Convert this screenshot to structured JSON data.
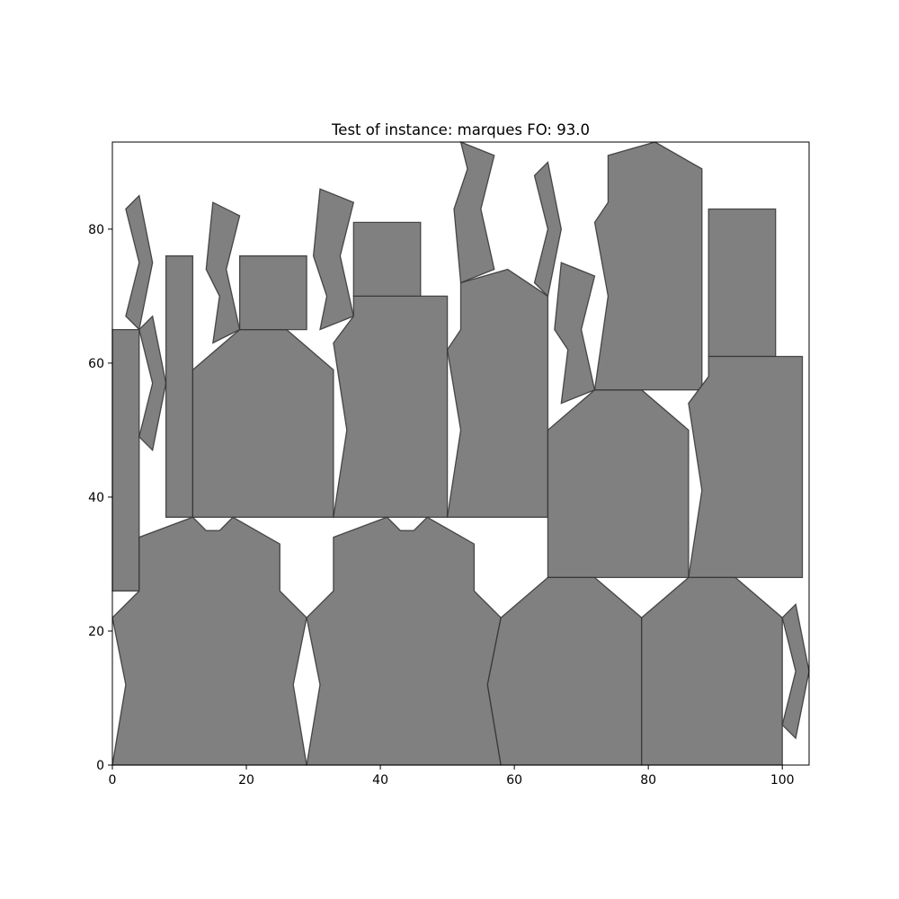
{
  "chart_data": {
    "type": "polygon-packing",
    "title": "Test of instance: marques  FO: 93.0",
    "xlabel": "",
    "ylabel": "",
    "xlim": [
      0,
      104
    ],
    "ylim": [
      0,
      93
    ],
    "xticks": [
      0,
      20,
      40,
      60,
      80,
      100
    ],
    "yticks": [
      0,
      20,
      40,
      60,
      80
    ],
    "grid": false,
    "fill_color": "#808080",
    "edge_color": "#333333",
    "polygons": [
      [
        [
          0,
          26
        ],
        [
          4,
          26
        ],
        [
          4,
          65
        ],
        [
          0,
          65
        ]
      ],
      [
        [
          2,
          83
        ],
        [
          4,
          85
        ],
        [
          6,
          75
        ],
        [
          4,
          65
        ],
        [
          2,
          67
        ],
        [
          4,
          75
        ]
      ],
      [
        [
          4,
          49
        ],
        [
          6,
          47
        ],
        [
          8,
          57
        ],
        [
          6,
          67
        ],
        [
          4,
          65
        ],
        [
          6,
          57
        ]
      ],
      [
        [
          8,
          37
        ],
        [
          12,
          37
        ],
        [
          12,
          76
        ],
        [
          8,
          76
        ]
      ],
      [
        [
          12,
          37
        ],
        [
          33,
          37
        ],
        [
          33,
          59
        ],
        [
          26,
          65
        ],
        [
          19,
          65
        ],
        [
          12,
          59
        ]
      ],
      [
        [
          19,
          65
        ],
        [
          29,
          65
        ],
        [
          29,
          76
        ],
        [
          19,
          76
        ]
      ],
      [
        [
          14,
          74
        ],
        [
          15,
          84
        ],
        [
          19,
          82
        ],
        [
          17,
          74
        ],
        [
          19,
          65
        ],
        [
          15,
          63
        ],
        [
          16,
          70
        ]
      ],
      [
        [
          30,
          76
        ],
        [
          31,
          86
        ],
        [
          36,
          84
        ],
        [
          34,
          76
        ],
        [
          36,
          67
        ],
        [
          31,
          65
        ],
        [
          32,
          70
        ]
      ],
      [
        [
          33,
          37
        ],
        [
          50,
          37
        ],
        [
          50,
          70
        ],
        [
          36,
          70
        ],
        [
          36,
          67
        ],
        [
          33,
          63
        ],
        [
          35,
          50
        ]
      ],
      [
        [
          36,
          70
        ],
        [
          46,
          70
        ],
        [
          46,
          81
        ],
        [
          36,
          81
        ]
      ],
      [
        [
          50,
          37
        ],
        [
          65,
          37
        ],
        [
          65,
          70
        ],
        [
          59,
          74
        ],
        [
          52,
          72
        ],
        [
          52,
          65
        ],
        [
          50,
          62
        ],
        [
          52,
          50
        ]
      ],
      [
        [
          51,
          83
        ],
        [
          53,
          89
        ],
        [
          52,
          93
        ],
        [
          57,
          91
        ],
        [
          55,
          83
        ],
        [
          57,
          74
        ],
        [
          52,
          72
        ]
      ],
      [
        [
          63,
          88
        ],
        [
          65,
          90
        ],
        [
          67,
          80
        ],
        [
          65,
          70
        ],
        [
          63,
          72
        ],
        [
          65,
          80
        ]
      ],
      [
        [
          67,
          75
        ],
        [
          72,
          73
        ],
        [
          70,
          65
        ],
        [
          72,
          56
        ],
        [
          67,
          54
        ],
        [
          68,
          62
        ],
        [
          66,
          65
        ]
      ],
      [
        [
          65,
          28
        ],
        [
          86,
          28
        ],
        [
          86,
          50
        ],
        [
          79,
          56
        ],
        [
          72,
          56
        ],
        [
          65,
          50
        ]
      ],
      [
        [
          72,
          56
        ],
        [
          88,
          56
        ],
        [
          88,
          89
        ],
        [
          81,
          93
        ],
        [
          74,
          91
        ],
        [
          74,
          84
        ],
        [
          72,
          81
        ],
        [
          74,
          70
        ]
      ],
      [
        [
          89,
          61
        ],
        [
          99,
          61
        ],
        [
          99,
          83
        ],
        [
          89,
          83
        ]
      ],
      [
        [
          86,
          28
        ],
        [
          103,
          28
        ],
        [
          103,
          61
        ],
        [
          89,
          61
        ],
        [
          89,
          58
        ],
        [
          86,
          54
        ],
        [
          88,
          41
        ]
      ],
      [
        [
          0,
          0
        ],
        [
          29,
          0
        ],
        [
          27,
          12
        ],
        [
          29,
          22
        ],
        [
          25,
          26
        ],
        [
          25,
          33
        ],
        [
          18,
          37
        ],
        [
          16,
          35
        ],
        [
          14,
          35
        ],
        [
          12,
          37
        ],
        [
          4,
          34
        ],
        [
          4,
          26
        ],
        [
          0,
          22
        ],
        [
          2,
          12
        ]
      ],
      [
        [
          29,
          0
        ],
        [
          58,
          0
        ],
        [
          56,
          12
        ],
        [
          58,
          22
        ],
        [
          54,
          26
        ],
        [
          54,
          33
        ],
        [
          47,
          37
        ],
        [
          45,
          35
        ],
        [
          43,
          35
        ],
        [
          41,
          37
        ],
        [
          33,
          34
        ],
        [
          33,
          26
        ],
        [
          29,
          22
        ],
        [
          31,
          12
        ]
      ],
      [
        [
          58,
          0
        ],
        [
          79,
          0
        ],
        [
          79,
          22
        ],
        [
          72,
          28
        ],
        [
          65,
          28
        ],
        [
          58,
          22
        ],
        [
          56,
          12
        ]
      ],
      [
        [
          79,
          0
        ],
        [
          100,
          0
        ],
        [
          100,
          22
        ],
        [
          93,
          28
        ],
        [
          86,
          28
        ],
        [
          79,
          22
        ]
      ],
      [
        [
          100,
          22
        ],
        [
          102,
          24
        ],
        [
          104,
          14
        ],
        [
          102,
          4
        ],
        [
          100,
          6
        ],
        [
          102,
          14
        ]
      ]
    ]
  }
}
